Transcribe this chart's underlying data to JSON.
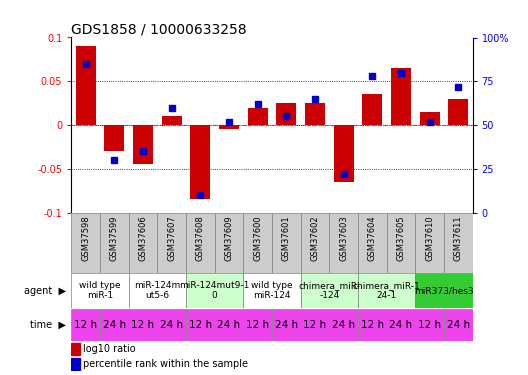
{
  "title": "GDS1858 / 10000633258",
  "samples": [
    "GSM37598",
    "GSM37599",
    "GSM37606",
    "GSM37607",
    "GSM37608",
    "GSM37609",
    "GSM37600",
    "GSM37601",
    "GSM37602",
    "GSM37603",
    "GSM37604",
    "GSM37605",
    "GSM37610",
    "GSM37611"
  ],
  "log10_ratio": [
    0.09,
    -0.03,
    -0.045,
    0.01,
    -0.085,
    -0.005,
    0.02,
    0.025,
    0.025,
    -0.065,
    0.035,
    0.065,
    0.015,
    0.03
  ],
  "percentile_rank": [
    85,
    30,
    35,
    60,
    10,
    52,
    62,
    55,
    65,
    22,
    78,
    80,
    52,
    72
  ],
  "agents": [
    {
      "label": "wild type\nmiR-1",
      "cols": [
        0,
        1
      ],
      "color": "#ffffff"
    },
    {
      "label": "miR-124m\nut5-6",
      "cols": [
        2,
        3
      ],
      "color": "#ffffff"
    },
    {
      "label": "miR-124mut9-1\n0",
      "cols": [
        4,
        5
      ],
      "color": "#ccffcc"
    },
    {
      "label": "wild type\nmiR-124",
      "cols": [
        6,
        7
      ],
      "color": "#ffffff"
    },
    {
      "label": "chimera_miR-\n-124",
      "cols": [
        8,
        9
      ],
      "color": "#ccffcc"
    },
    {
      "label": "chimera_miR-1\n24-1",
      "cols": [
        10,
        11
      ],
      "color": "#ccffcc"
    },
    {
      "label": "miR373/hes3",
      "cols": [
        12,
        13
      ],
      "color": "#33cc33"
    }
  ],
  "time_labels": [
    "12 h",
    "24 h",
    "12 h",
    "24 h",
    "12 h",
    "24 h",
    "12 h",
    "24 h",
    "12 h",
    "24 h",
    "12 h",
    "24 h",
    "12 h",
    "24 h"
  ],
  "time_color": "#ee44ee",
  "bar_color": "#cc0000",
  "dot_color": "#0000cc",
  "sample_bg": "#cccccc",
  "ylim_left": [
    -0.1,
    0.1
  ],
  "ylim_right": [
    0,
    100
  ],
  "yticks_left": [
    -0.1,
    -0.05,
    0.0,
    0.05,
    0.1
  ],
  "yticks_right": [
    0,
    25,
    50,
    75,
    100
  ],
  "ytick_labels_right": [
    "0",
    "25",
    "50",
    "75",
    "100%"
  ],
  "title_fontsize": 10,
  "sample_label_fontsize": 6,
  "agent_fontsize": 6.5,
  "time_fontsize": 7.5
}
